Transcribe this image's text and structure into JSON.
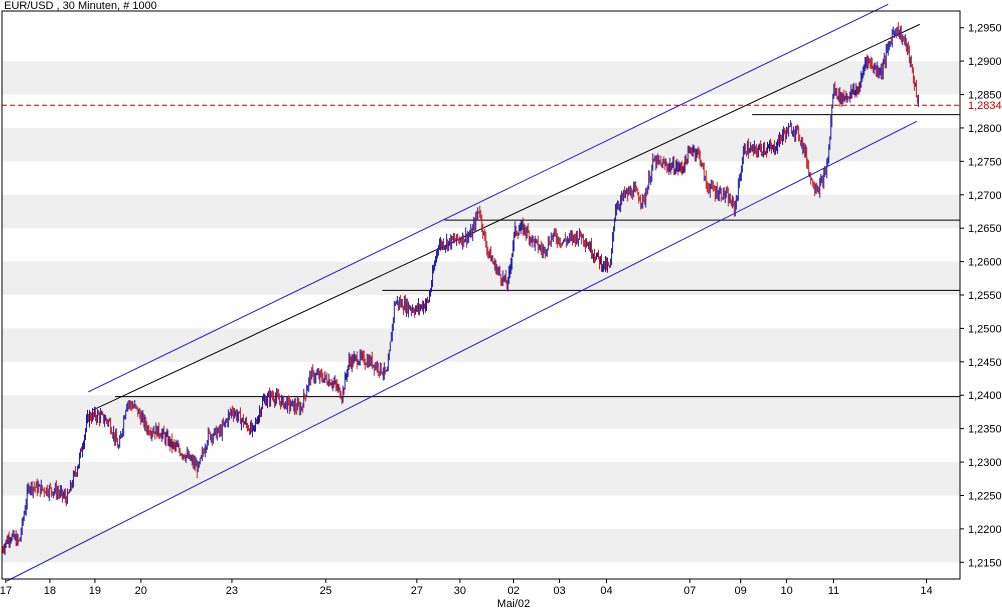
{
  "chart_data": {
    "type": "candlestick",
    "title": "EUR/USD , 30 Minuten, # 1000",
    "x_month_label": "Mai/02",
    "xlabel": "",
    "ylabel": "",
    "ylim": [
      1.2125,
      1.2975
    ],
    "y_ticks": [
      1.215,
      1.22,
      1.225,
      1.23,
      1.235,
      1.24,
      1.245,
      1.25,
      1.255,
      1.26,
      1.265,
      1.27,
      1.275,
      1.28,
      1.285,
      1.29,
      1.295
    ],
    "y_tick_labels": [
      "1,2150",
      "1,2200",
      "1,2250",
      "1,2300",
      "1,2350",
      "1,2400",
      "1,2450",
      "1,2500",
      "1,2550",
      "1,2600",
      "1,2650",
      "1,2700",
      "1,2750",
      "1,2800",
      "1,2850",
      "1,2900",
      "1,2950"
    ],
    "x_tick_labels": [
      "17",
      "18",
      "19",
      "20",
      "23",
      "25",
      "27",
      "30",
      "02",
      "03",
      "04",
      "07",
      "09",
      "10",
      "11",
      "14"
    ],
    "last_price": 1.2834,
    "last_price_label": "1,2834",
    "colors": {
      "up": "#1a1aa6",
      "down": "#c41a1a",
      "channel": "#1a1ad6",
      "trend": "#000000",
      "last_line": "#c00000",
      "band": "#efefef"
    },
    "price_path": [
      [
        0.0,
        1.217
      ],
      [
        0.008,
        1.219
      ],
      [
        0.018,
        1.218
      ],
      [
        0.028,
        1.2265
      ],
      [
        0.04,
        1.226
      ],
      [
        0.055,
        1.2258
      ],
      [
        0.068,
        1.2245
      ],
      [
        0.08,
        1.23
      ],
      [
        0.09,
        1.2368
      ],
      [
        0.1,
        1.237
      ],
      [
        0.112,
        1.236
      ],
      [
        0.122,
        1.232
      ],
      [
        0.13,
        1.239
      ],
      [
        0.14,
        1.238
      ],
      [
        0.152,
        1.235
      ],
      [
        0.165,
        1.2345
      ],
      [
        0.178,
        1.2325
      ],
      [
        0.192,
        1.231
      ],
      [
        0.205,
        1.229
      ],
      [
        0.215,
        1.234
      ],
      [
        0.228,
        1.2345
      ],
      [
        0.24,
        1.2378
      ],
      [
        0.252,
        1.236
      ],
      [
        0.262,
        1.2345
      ],
      [
        0.272,
        1.239
      ],
      [
        0.282,
        1.24
      ],
      [
        0.292,
        1.239
      ],
      [
        0.302,
        1.2385
      ],
      [
        0.312,
        1.238
      ],
      [
        0.322,
        1.243
      ],
      [
        0.332,
        1.2428
      ],
      [
        0.345,
        1.242
      ],
      [
        0.355,
        1.24
      ],
      [
        0.362,
        1.245
      ],
      [
        0.372,
        1.2455
      ],
      [
        0.385,
        1.245
      ],
      [
        0.395,
        1.244
      ],
      [
        0.402,
        1.243
      ],
      [
        0.41,
        1.254
      ],
      [
        0.42,
        1.2535
      ],
      [
        0.432,
        1.2528
      ],
      [
        0.445,
        1.254
      ],
      [
        0.455,
        1.2625
      ],
      [
        0.468,
        1.263
      ],
      [
        0.48,
        1.2635
      ],
      [
        0.49,
        1.264
      ],
      [
        0.498,
        1.268
      ],
      [
        0.505,
        1.2625
      ],
      [
        0.512,
        1.26
      ],
      [
        0.52,
        1.258
      ],
      [
        0.528,
        1.2565
      ],
      [
        0.535,
        1.2645
      ],
      [
        0.545,
        1.265
      ],
      [
        0.555,
        1.263
      ],
      [
        0.565,
        1.2615
      ],
      [
        0.575,
        1.264
      ],
      [
        0.585,
        1.263
      ],
      [
        0.595,
        1.2635
      ],
      [
        0.605,
        1.264
      ],
      [
        0.618,
        1.2612
      ],
      [
        0.628,
        1.2595
      ],
      [
        0.635,
        1.259
      ],
      [
        0.64,
        1.268
      ],
      [
        0.65,
        1.27
      ],
      [
        0.66,
        1.2705
      ],
      [
        0.67,
        1.269
      ],
      [
        0.68,
        1.275
      ],
      [
        0.69,
        1.2745
      ],
      [
        0.7,
        1.2742
      ],
      [
        0.71,
        1.274
      ],
      [
        0.72,
        1.277
      ],
      [
        0.728,
        1.276
      ],
      [
        0.735,
        1.2715
      ],
      [
        0.745,
        1.2705
      ],
      [
        0.755,
        1.27
      ],
      [
        0.765,
        1.268
      ],
      [
        0.775,
        1.277
      ],
      [
        0.785,
        1.2765
      ],
      [
        0.795,
        1.277
      ],
      [
        0.805,
        1.2768
      ],
      [
        0.815,
        1.279
      ],
      [
        0.825,
        1.28
      ],
      [
        0.832,
        1.279
      ],
      [
        0.838,
        1.2765
      ],
      [
        0.845,
        1.272
      ],
      [
        0.852,
        1.271
      ],
      [
        0.858,
        1.2725
      ],
      [
        0.862,
        1.275
      ],
      [
        0.868,
        1.286
      ],
      [
        0.875,
        1.2845
      ],
      [
        0.885,
        1.285
      ],
      [
        0.895,
        1.286
      ],
      [
        0.902,
        1.2905
      ],
      [
        0.91,
        1.289
      ],
      [
        0.918,
        1.2885
      ],
      [
        0.925,
        1.292
      ],
      [
        0.932,
        1.295
      ],
      [
        0.938,
        1.294
      ],
      [
        0.945,
        1.292
      ],
      [
        0.952,
        1.287
      ],
      [
        0.957,
        1.2834
      ]
    ],
    "horizontal_levels": [
      {
        "price": 1.2398,
        "from_frac": 0.118
      },
      {
        "price": 1.2557,
        "from_frac": 0.397
      },
      {
        "price": 1.2662,
        "from_frac": 0.462
      },
      {
        "price": 1.282,
        "from_frac": 0.783
      }
    ],
    "trend_lines": [
      {
        "role": "channel",
        "from": [
          0.09,
          1.2405
        ],
        "to": [
          0.925,
          1.2985
        ]
      },
      {
        "role": "channel",
        "from": [
          0.005,
          1.2122
        ],
        "to": [
          0.955,
          1.281
        ]
      },
      {
        "role": "trend",
        "from": [
          0.095,
          1.2378
        ],
        "to": [
          0.958,
          1.2955
        ]
      }
    ]
  }
}
